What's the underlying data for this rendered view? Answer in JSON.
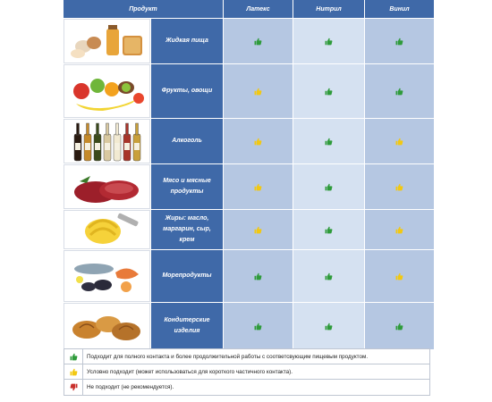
{
  "header": {
    "product": "Продукт",
    "latex": "Латекс",
    "nitrile": "Нитрил",
    "vinyl": "Винил"
  },
  "colors": {
    "suitable": "#2e9b3a",
    "conditional": "#f2c811",
    "unsuitable": "#c8302c"
  },
  "rows": [
    {
      "name": "Жидкая пища",
      "image": "eggs-honey-bread-image",
      "latex": "suitable",
      "nitrile": "suitable",
      "vinyl": "suitable"
    },
    {
      "name": "Фрукты, овощи",
      "image": "fruits-vegetables-image",
      "latex": "conditional",
      "nitrile": "suitable",
      "vinyl": "suitable"
    },
    {
      "name": "Алкоголь",
      "image": "alcohol-bottles-image",
      "latex": "conditional",
      "nitrile": "suitable",
      "vinyl": "conditional"
    },
    {
      "name": "Мясо и мясные\nпродукты",
      "image": "raw-meat-image",
      "latex": "conditional",
      "nitrile": "suitable",
      "vinyl": "conditional"
    },
    {
      "name": "Жиры: масло,\nмаргарин, сыр,\nкрем",
      "image": "butter-curl-image",
      "latex": "conditional",
      "nitrile": "suitable",
      "vinyl": "conditional"
    },
    {
      "name": "Морепродукты",
      "image": "seafood-image",
      "latex": "suitable",
      "nitrile": "suitable",
      "vinyl": "conditional"
    },
    {
      "name": "Кондитерские\nизделия",
      "image": "pastries-image",
      "latex": "suitable",
      "nitrile": "suitable",
      "vinyl": "suitable"
    }
  ],
  "legend": [
    {
      "status": "suitable",
      "text": "Подходит для полного контакта и более продолжительной работы с соответсвующим пищевым продуктом."
    },
    {
      "status": "conditional",
      "text": "Условно подходит (может использоваться для короткого частичного контакта)."
    },
    {
      "status": "unsuitable",
      "text": "Не подходит (не рекомендуется)."
    }
  ]
}
